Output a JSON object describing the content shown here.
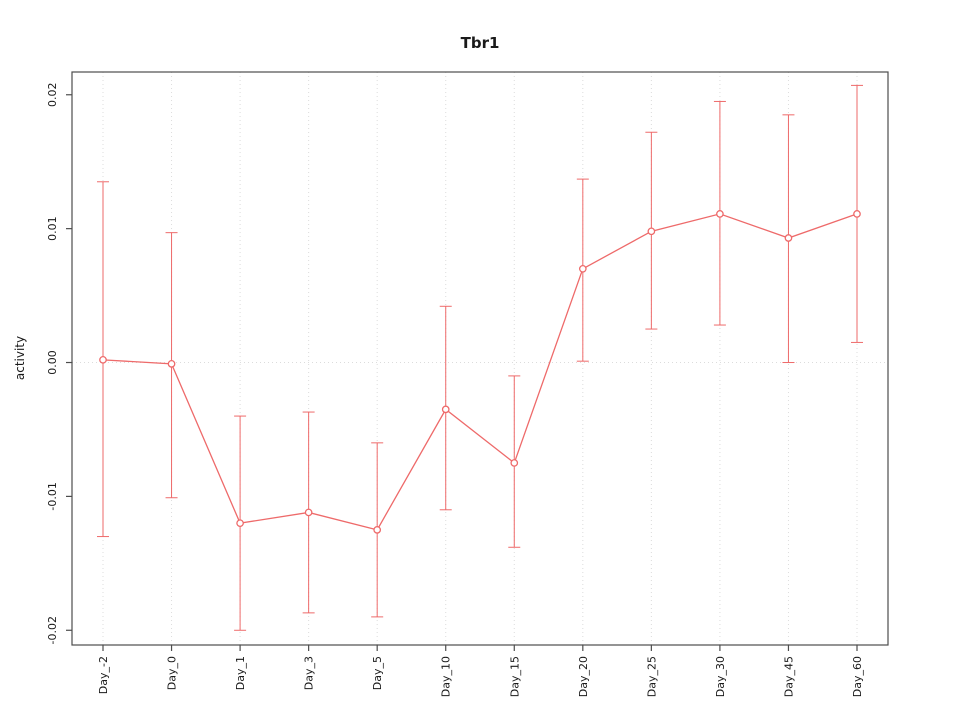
{
  "chart_data": {
    "type": "line",
    "title": "Tbr1",
    "xlabel": "",
    "ylabel": "activity",
    "categories": [
      "Day_-2",
      "Day_0",
      "Day_1",
      "Day_3",
      "Day_5",
      "Day_10",
      "Day_15",
      "Day_20",
      "Day_25",
      "Day_30",
      "Day_45",
      "Day_60"
    ],
    "series": [
      {
        "name": "mean activity",
        "values": [
          0.0002,
          -0.0001,
          -0.012,
          -0.0112,
          -0.0125,
          -0.0035,
          -0.0075,
          0.007,
          0.0098,
          0.0111,
          0.0093,
          0.0111
        ]
      }
    ],
    "error_upper": [
      0.0135,
      0.0097,
      -0.004,
      -0.0037,
      -0.006,
      0.0042,
      -0.001,
      0.0137,
      0.0172,
      0.0195,
      0.0185,
      0.0207
    ],
    "error_lower": [
      -0.013,
      -0.0101,
      -0.02,
      -0.0187,
      -0.019,
      -0.011,
      -0.0138,
      0.0001,
      0.0025,
      0.0028,
      0.0,
      0.0015
    ],
    "yticks": [
      -0.02,
      -0.01,
      0,
      0.01,
      0.02
    ],
    "ytick_labels": [
      "-0.02",
      "-0.01",
      "0.00",
      "0.01",
      "0.02"
    ],
    "ylim": [
      -0.0211,
      0.0217
    ],
    "legend": "none",
    "grid": {
      "vertical": "dotted line at every category",
      "horizontal": "dotted line at y = 0",
      "style": "dotted"
    },
    "colors": {
      "series": "#ee6a6a",
      "grid": "#dcdcdc",
      "zero_line": "#dcdcdc",
      "axis": "#4d4d4d"
    }
  }
}
